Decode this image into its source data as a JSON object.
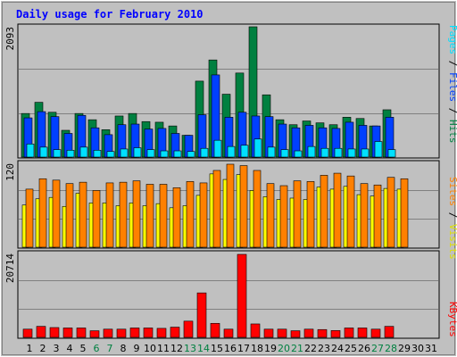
{
  "title": "Daily usage for February 2010",
  "colors": {
    "background": "#c0c0c0",
    "panel": "#c0c0c0",
    "title": "#0000ff",
    "hits": "#008040",
    "files": "#0040ff",
    "pages": "#00e0ff",
    "visits": "#ffff00",
    "sites": "#ff8000",
    "kbytes": "#ff0000",
    "weekend_day": "#008040",
    "weekday": "#000000"
  },
  "chart_data": [
    {
      "type": "bar",
      "ylabel_max": "2093",
      "ylim": [
        0,
        2093
      ],
      "legend": [
        {
          "name": "Hits",
          "color": "#008040"
        },
        {
          "name": "Files",
          "color": "#0040ff"
        },
        {
          "name": "Pages",
          "color": "#00e0ff"
        }
      ],
      "categories": [
        "1",
        "2",
        "3",
        "4",
        "5",
        "6",
        "7",
        "8",
        "9",
        "10",
        "11",
        "12",
        "13",
        "14",
        "15",
        "16",
        "17",
        "18",
        "19",
        "20",
        "21",
        "22",
        "23",
        "24",
        "25",
        "26",
        "27",
        "28",
        "29",
        "30",
        "31"
      ],
      "weekend_days": [
        6,
        7,
        13,
        14,
        20,
        21,
        27,
        28
      ],
      "series": [
        {
          "name": "Hits",
          "values": [
            700,
            880,
            720,
            430,
            700,
            600,
            440,
            660,
            700,
            570,
            560,
            500,
            350,
            1220,
            1560,
            1010,
            1350,
            2093,
            1000,
            600,
            520,
            580,
            550,
            520,
            640,
            620,
            500,
            760,
            0,
            0,
            0
          ]
        },
        {
          "name": "Files",
          "values": [
            630,
            730,
            650,
            380,
            670,
            470,
            360,
            520,
            530,
            450,
            460,
            380,
            350,
            680,
            1320,
            640,
            720,
            660,
            650,
            530,
            470,
            510,
            470,
            460,
            560,
            510,
            500,
            640,
            0,
            0,
            0
          ]
        },
        {
          "name": "Pages",
          "values": [
            210,
            160,
            120,
            110,
            160,
            110,
            90,
            130,
            150,
            120,
            100,
            100,
            90,
            140,
            270,
            170,
            190,
            290,
            160,
            120,
            100,
            170,
            140,
            140,
            130,
            130,
            250,
            120,
            0,
            0,
            0
          ]
        }
      ]
    },
    {
      "type": "bar",
      "ylabel_max": "120",
      "ylim": [
        0,
        120
      ],
      "legend": [
        {
          "name": "Sites",
          "color": "#ff8000"
        },
        {
          "name": "Visits",
          "color": "#ffff00"
        }
      ],
      "categories": [
        "1",
        "2",
        "3",
        "4",
        "5",
        "6",
        "7",
        "8",
        "9",
        "10",
        "11",
        "12",
        "13",
        "14",
        "15",
        "16",
        "17",
        "18",
        "19",
        "20",
        "21",
        "22",
        "23",
        "24",
        "25",
        "26",
        "27",
        "28",
        "29",
        "30",
        "31"
      ],
      "series": [
        {
          "name": "Sites",
          "values": [
            84,
            99,
            97,
            92,
            94,
            82,
            93,
            94,
            96,
            91,
            91,
            86,
            95,
            93,
            111,
            120,
            118,
            111,
            92,
            89,
            96,
            95,
            104,
            107,
            103,
            92,
            90,
            101,
            99,
            0,
            0
          ]
        },
        {
          "name": "Visits",
          "values": [
            61,
            70,
            72,
            59,
            78,
            64,
            64,
            60,
            64,
            60,
            63,
            57,
            60,
            75,
            106,
            98,
            105,
            82,
            73,
            69,
            71,
            69,
            87,
            84,
            88,
            76,
            74,
            85,
            84,
            0,
            0
          ]
        }
      ]
    },
    {
      "type": "bar",
      "ylabel_max": "20714",
      "ylim": [
        0,
        20714
      ],
      "legend": [
        {
          "name": "KBytes",
          "color": "#ff0000"
        }
      ],
      "categories": [
        "1",
        "2",
        "3",
        "4",
        "5",
        "6",
        "7",
        "8",
        "9",
        "10",
        "11",
        "12",
        "13",
        "14",
        "15",
        "16",
        "17",
        "18",
        "19",
        "20",
        "21",
        "22",
        "23",
        "24",
        "25",
        "26",
        "27",
        "28",
        "29",
        "30",
        "31"
      ],
      "series": [
        {
          "name": "KBytes",
          "values": [
            2050,
            2750,
            2450,
            2350,
            2350,
            1650,
            2050,
            2050,
            2350,
            2350,
            2250,
            2550,
            4050,
            11100,
            3500,
            2050,
            20714,
            3350,
            2050,
            2050,
            1650,
            2050,
            1950,
            1700,
            2350,
            2350,
            2050,
            2750,
            0,
            0,
            0
          ]
        }
      ]
    }
  ]
}
